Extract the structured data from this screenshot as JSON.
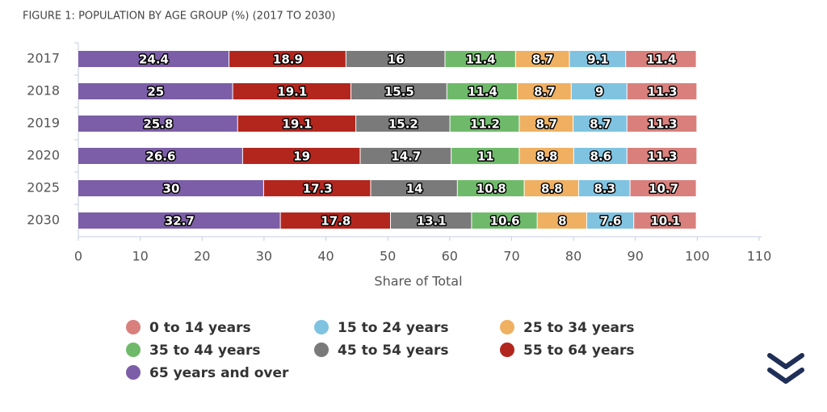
{
  "chart_data": {
    "type": "stacked-bar-horizontal",
    "title": "FIGURE 1: POPULATION BY AGE GROUP (%) (2017 TO 2030)",
    "x_label": "Share of Total",
    "categories": [
      "2017",
      "2018",
      "2019",
      "2020",
      "2025",
      "2030"
    ],
    "series": [
      {
        "name": "0 to 14 years",
        "color": "#d9807c",
        "values": [
          11.4,
          11.3,
          11.3,
          11.3,
          10.7,
          10.1
        ]
      },
      {
        "name": "15 to 24 years",
        "color": "#7fc3e1",
        "values": [
          9.1,
          9,
          8.7,
          8.6,
          8.3,
          7.6
        ]
      },
      {
        "name": "25 to 34 years",
        "color": "#efb062",
        "values": [
          8.7,
          8.7,
          8.7,
          8.8,
          8.8,
          8
        ]
      },
      {
        "name": "35 to 44 years",
        "color": "#6fba6a",
        "values": [
          11.4,
          11.4,
          11.2,
          11,
          10.8,
          10.6
        ]
      },
      {
        "name": "45 to 54 years",
        "color": "#7a7a7a",
        "values": [
          16,
          15.5,
          15.2,
          14.7,
          14,
          13.1
        ]
      },
      {
        "name": "55 to 64 years",
        "color": "#b3261e",
        "values": [
          18.9,
          19.1,
          19.1,
          19,
          17.3,
          17.8
        ]
      },
      {
        "name": "65 years and over",
        "color": "#7b5ea7",
        "values": [
          24.4,
          25,
          25.8,
          26.6,
          30,
          32.7
        ]
      }
    ],
    "xlim": [
      0,
      110
    ],
    "xticks": [
      0,
      10,
      20,
      30,
      40,
      50,
      60,
      70,
      80,
      90,
      100,
      110
    ],
    "grid": false,
    "legend_position": "bottom"
  }
}
